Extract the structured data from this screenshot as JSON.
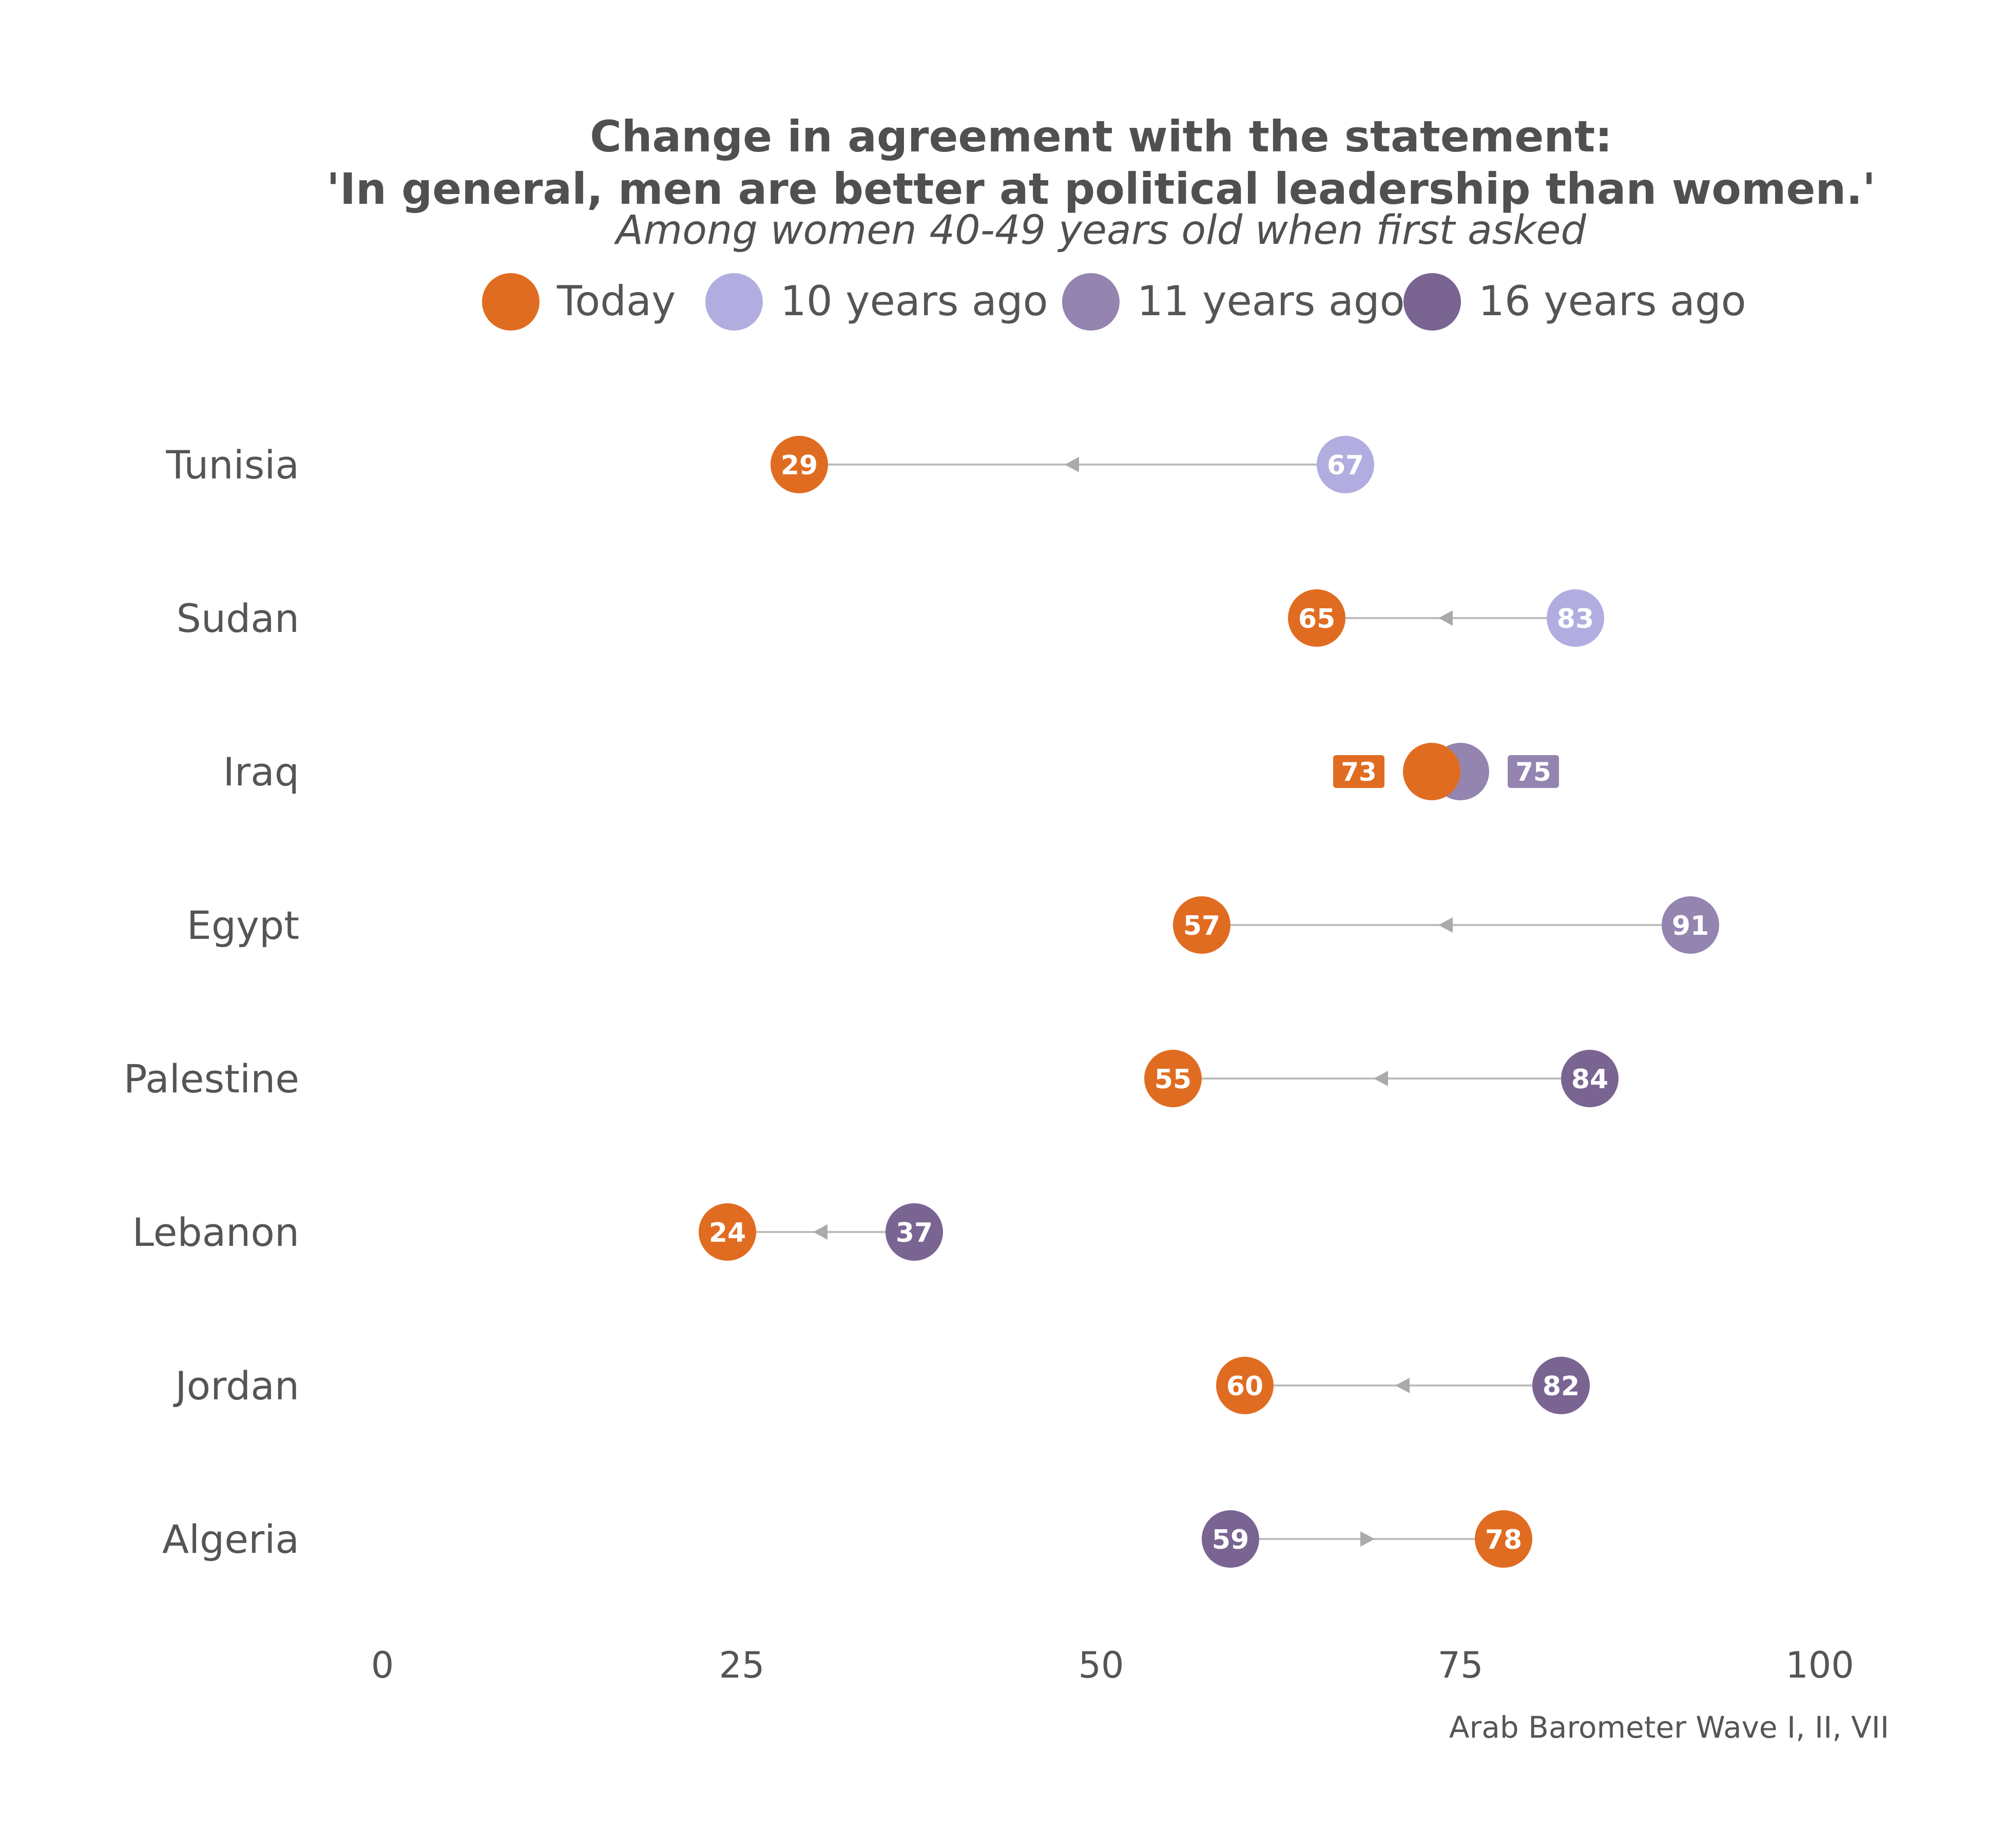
{
  "chart_data": {
    "type": "dumbbell",
    "title_lines": [
      "Change in agreement with the statement:",
      "'In general, men are better at political leadership than women.'"
    ],
    "subtitle": "Among women 40-49 years old when first asked",
    "caption": "Arab Barometer Wave I, II, VII",
    "legend": [
      {
        "key": "today",
        "label": "Today",
        "color": "#E06C21"
      },
      {
        "key": "y10",
        "label": "10 years ago",
        "color": "#B2ADE0"
      },
      {
        "key": "y11",
        "label": "11 years ago",
        "color": "#9484B0"
      },
      {
        "key": "y16",
        "label": "16 years ago",
        "color": "#7A6492"
      }
    ],
    "legend_position": "top",
    "xlim": [
      0,
      100
    ],
    "xticks": [
      0,
      25,
      50,
      75,
      100
    ],
    "grid": false,
    "rows": [
      {
        "country": "Tunisia",
        "today": 29,
        "past": 67,
        "past_key": "y10"
      },
      {
        "country": "Sudan",
        "today": 65,
        "past": 83,
        "past_key": "y10"
      },
      {
        "country": "Iraq",
        "today": 73,
        "past": 75,
        "past_key": "y11"
      },
      {
        "country": "Egypt",
        "today": 57,
        "past": 91,
        "past_key": "y11"
      },
      {
        "country": "Palestine",
        "today": 55,
        "past": 84,
        "past_key": "y16"
      },
      {
        "country": "Lebanon",
        "today": 24,
        "past": 37,
        "past_key": "y16"
      },
      {
        "country": "Jordan",
        "today": 60,
        "past": 82,
        "past_key": "y16"
      },
      {
        "country": "Algeria",
        "today": 78,
        "past": 59,
        "past_key": "y16"
      }
    ],
    "line_color": "#BDBDBD",
    "text_color": "#505050"
  }
}
